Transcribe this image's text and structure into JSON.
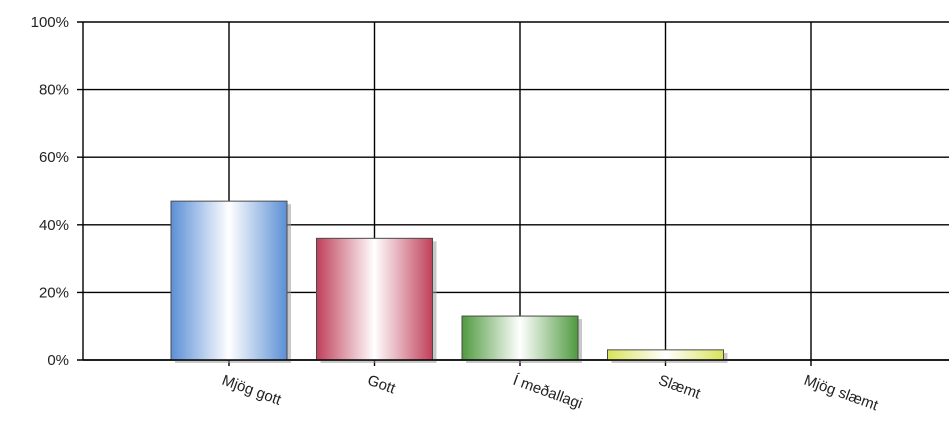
{
  "chart_data": {
    "type": "bar",
    "categories": [
      "Mjög gott",
      "Gott",
      "Í meðallagi",
      "Slæmt",
      "Mjög slæmt"
    ],
    "values": [
      47,
      36,
      13,
      3,
      0
    ],
    "value_unit": "%",
    "ylim": [
      0,
      100
    ],
    "yticks": [
      "0%",
      "20%",
      "40%",
      "60%",
      "80%",
      "100%"
    ],
    "grid": true,
    "legend": "none",
    "colors": [
      "#5b8fd6",
      "#c0405a",
      "#4f9a3f",
      "#d8e35a",
      "#999999"
    ]
  }
}
